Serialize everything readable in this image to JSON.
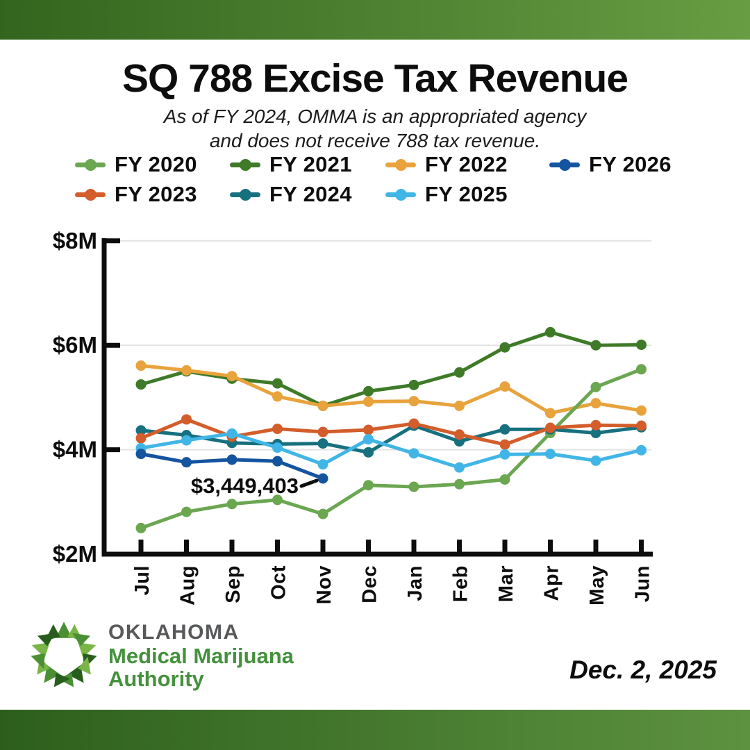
{
  "header": {
    "title": "SQ 788 Excise Tax Revenue",
    "subtitle_line1": "As of FY 2024, OMMA is an appropriated agency",
    "subtitle_line2": "and does not receive 788 tax revenue."
  },
  "chart_data": {
    "type": "line",
    "title": "SQ 788 Excise Tax Revenue",
    "categories": [
      "Jul",
      "Aug",
      "Sep",
      "Oct",
      "Nov",
      "Dec",
      "Jan",
      "Feb",
      "Mar",
      "Apr",
      "May",
      "Jun"
    ],
    "y_tick_labels": [
      "$8M",
      "$6M",
      "$4M",
      "$2M"
    ],
    "y_tick_values_millions": [
      8,
      6,
      4,
      2
    ],
    "ylim_millions": [
      2,
      8
    ],
    "grid": "horizontal gridlines at $4M, $6M, $8M",
    "legend_position": "top",
    "series": [
      {
        "name": "FY 2020",
        "color": "#6BA651",
        "values_millions": [
          2.5,
          2.81,
          2.96,
          3.04,
          2.77,
          3.32,
          3.29,
          3.34,
          3.43,
          4.32,
          5.2,
          5.54
        ]
      },
      {
        "name": "FY 2021",
        "color": "#3E7A27",
        "values_millions": [
          5.25,
          5.5,
          5.36,
          5.27,
          4.84,
          5.12,
          5.24,
          5.48,
          5.96,
          6.25,
          6.0,
          6.01
        ]
      },
      {
        "name": "FY 2022",
        "color": "#E8A33C",
        "values_millions": [
          5.61,
          5.52,
          5.41,
          5.02,
          4.84,
          4.92,
          4.93,
          4.84,
          5.21,
          4.7,
          4.89,
          4.75
        ]
      },
      {
        "name": "FY 2023",
        "color": "#D35D2B",
        "values_millions": [
          4.22,
          4.58,
          4.25,
          4.4,
          4.34,
          4.38,
          4.5,
          4.29,
          4.1,
          4.42,
          4.47,
          4.46
        ]
      },
      {
        "name": "FY 2024",
        "color": "#17707E",
        "values_millions": [
          4.37,
          4.28,
          4.13,
          4.11,
          4.12,
          3.95,
          4.46,
          4.16,
          4.39,
          4.39,
          4.32,
          4.43
        ]
      },
      {
        "name": "FY 2025",
        "color": "#41B6E6",
        "values_millions": [
          4.03,
          4.18,
          4.31,
          4.04,
          3.72,
          4.2,
          3.93,
          3.66,
          3.91,
          3.92,
          3.79,
          3.99
        ]
      },
      {
        "name": "FY 2026",
        "color": "#15549E",
        "values_millions": [
          3.92,
          3.76,
          3.81,
          3.78,
          3.449403
        ]
      }
    ],
    "annotation": {
      "text": "$3,449,403",
      "series": "FY 2026",
      "month": "Nov",
      "value_millions": 3.449403
    }
  },
  "legend": {
    "order": [
      "FY 2020",
      "FY 2021",
      "FY 2022",
      "FY 2026",
      "FY 2023",
      "FY 2024",
      "FY 2025"
    ]
  },
  "footer": {
    "logo_line1": "OKLAHOMA",
    "logo_line2": "Medical Marijuana",
    "logo_line3": "Authority",
    "date": "Dec. 2, 2025"
  }
}
